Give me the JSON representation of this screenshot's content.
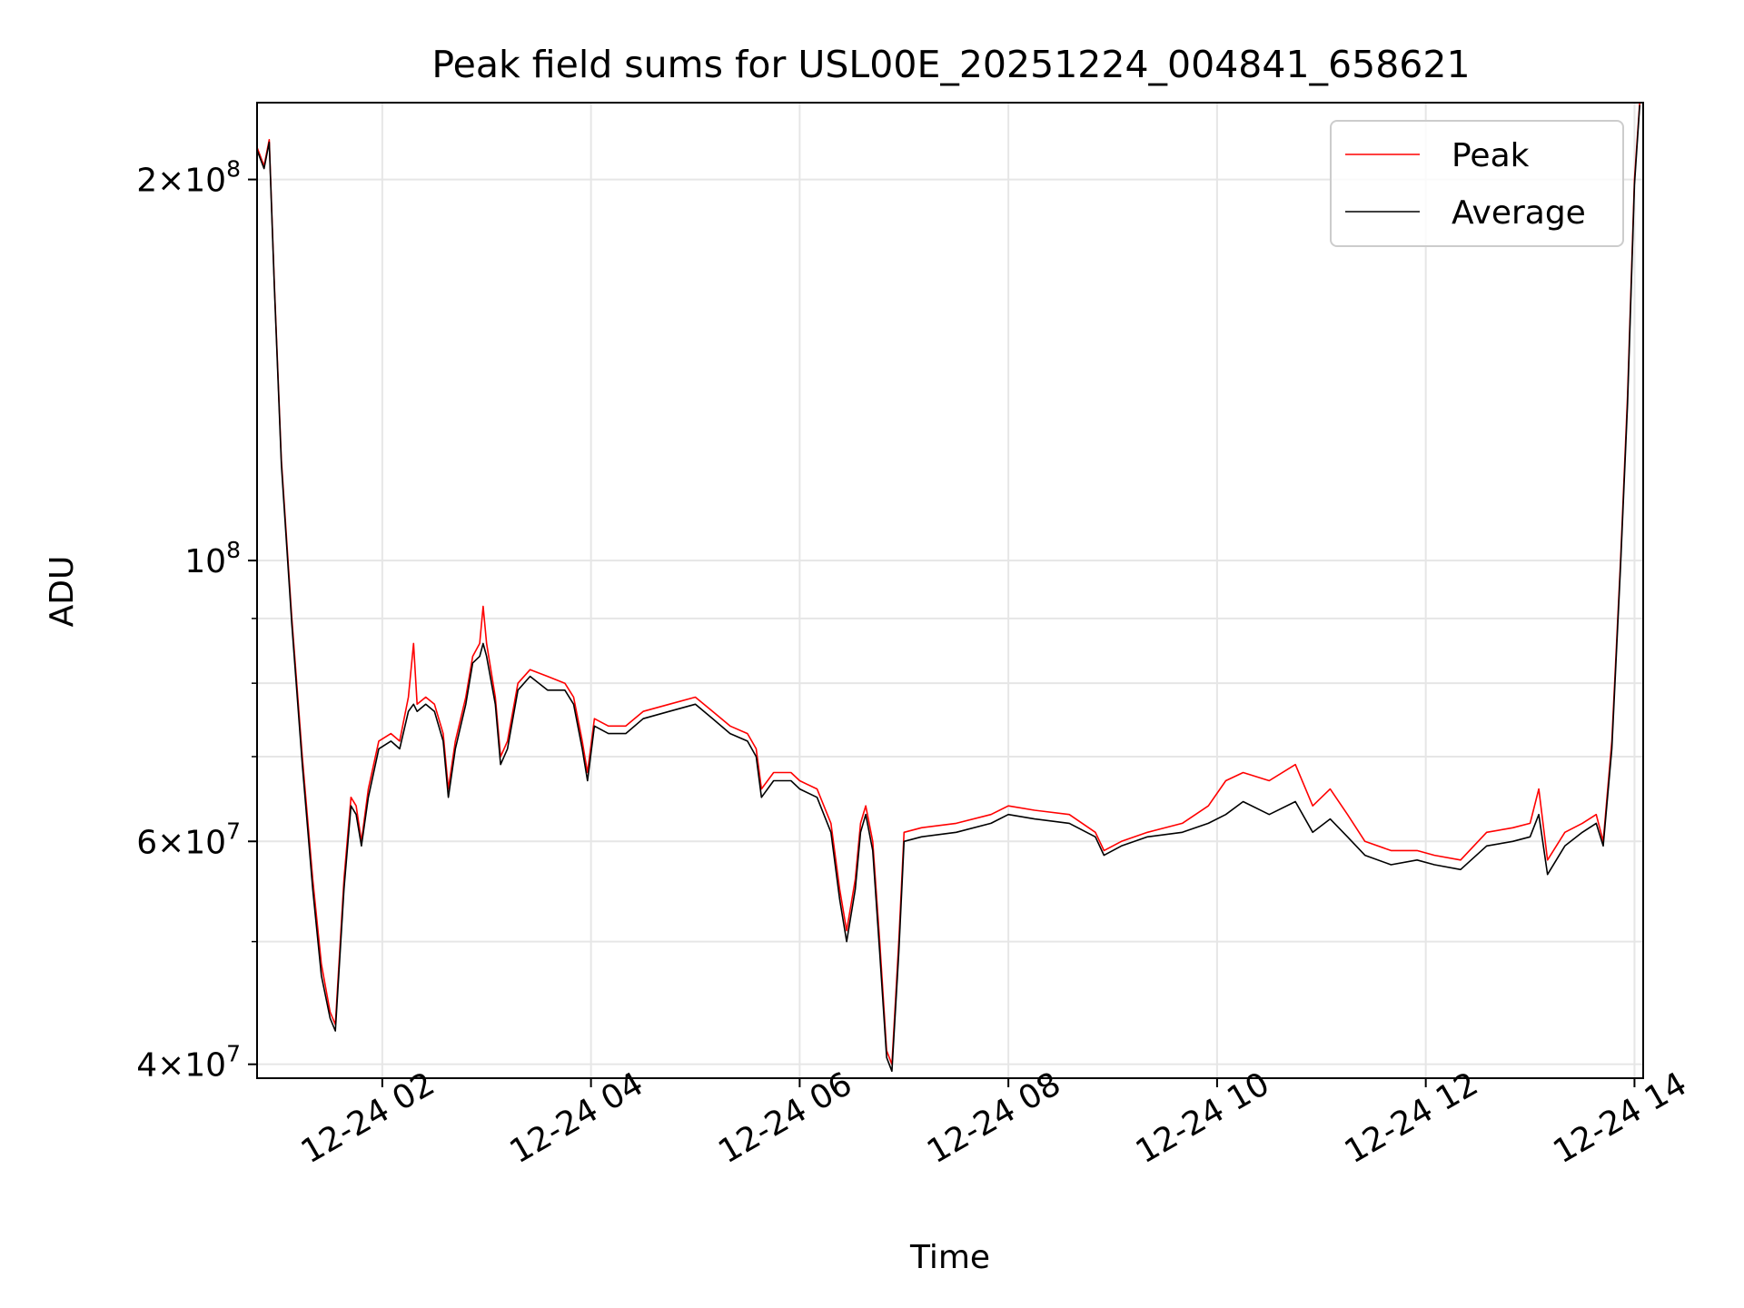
{
  "chart_data": {
    "type": "line",
    "title": "Peak field sums for USL00E_20251224_004841_658621",
    "xlabel": "Time",
    "ylabel": "ADU",
    "yscale": "log",
    "xlim": [
      "2025-12-24T00:48",
      "2025-12-24T14:05"
    ],
    "ylim": [
      39000000,
      230000000
    ],
    "x_ticks": [
      {
        "value": "2025-12-24T02:00",
        "label": "12-24 02"
      },
      {
        "value": "2025-12-24T04:00",
        "label": "12-24 04"
      },
      {
        "value": "2025-12-24T06:00",
        "label": "12-24 06"
      },
      {
        "value": "2025-12-24T08:00",
        "label": "12-24 08"
      },
      {
        "value": "2025-12-24T10:00",
        "label": "12-24 10"
      },
      {
        "value": "2025-12-24T12:00",
        "label": "12-24 12"
      },
      {
        "value": "2025-12-24T14:00",
        "label": "12-24 14"
      }
    ],
    "y_ticks": [
      {
        "value": 40000000,
        "mantissa": "4",
        "exponent": "7"
      },
      {
        "value": 60000000,
        "mantissa": "6",
        "exponent": "7"
      },
      {
        "value": 100000000,
        "mantissa": "",
        "exponent": "8"
      },
      {
        "value": 200000000,
        "mantissa": "2",
        "exponent": "8"
      }
    ],
    "y_minor_ticks": [
      50000000,
      70000000,
      80000000,
      90000000
    ],
    "grid": true,
    "legend": {
      "placement": "top-right"
    },
    "series": [
      {
        "name": "Peak",
        "color": "#ff0000",
        "points": [
          [
            "2025-12-24T00:48",
            212000000
          ],
          [
            "2025-12-24T00:52",
            205000000
          ],
          [
            "2025-12-24T00:55",
            215000000
          ],
          [
            "2025-12-24T00:58",
            165000000
          ],
          [
            "2025-12-24T01:02",
            120000000
          ],
          [
            "2025-12-24T01:08",
            90000000
          ],
          [
            "2025-12-24T01:14",
            70000000
          ],
          [
            "2025-12-24T01:20",
            56000000
          ],
          [
            "2025-12-24T01:25",
            48000000
          ],
          [
            "2025-12-24T01:30",
            44000000
          ],
          [
            "2025-12-24T01:33",
            43000000
          ],
          [
            "2025-12-24T01:38",
            56000000
          ],
          [
            "2025-12-24T01:42",
            65000000
          ],
          [
            "2025-12-24T01:45",
            64000000
          ],
          [
            "2025-12-24T01:48",
            60000000
          ],
          [
            "2025-12-24T01:52",
            66000000
          ],
          [
            "2025-12-24T01:58",
            72000000
          ],
          [
            "2025-12-24T02:05",
            73000000
          ],
          [
            "2025-12-24T02:10",
            72000000
          ],
          [
            "2025-12-24T02:15",
            78000000
          ],
          [
            "2025-12-24T02:18",
            86000000
          ],
          [
            "2025-12-24T02:20",
            77000000
          ],
          [
            "2025-12-24T02:25",
            78000000
          ],
          [
            "2025-12-24T02:30",
            77000000
          ],
          [
            "2025-12-24T02:35",
            73000000
          ],
          [
            "2025-12-24T02:38",
            66000000
          ],
          [
            "2025-12-24T02:42",
            72000000
          ],
          [
            "2025-12-24T02:48",
            78000000
          ],
          [
            "2025-12-24T02:52",
            84000000
          ],
          [
            "2025-12-24T02:56",
            86000000
          ],
          [
            "2025-12-24T02:58",
            92000000
          ],
          [
            "2025-12-24T03:00",
            86000000
          ],
          [
            "2025-12-24T03:05",
            78000000
          ],
          [
            "2025-12-24T03:08",
            70000000
          ],
          [
            "2025-12-24T03:12",
            72000000
          ],
          [
            "2025-12-24T03:18",
            80000000
          ],
          [
            "2025-12-24T03:25",
            82000000
          ],
          [
            "2025-12-24T03:35",
            81000000
          ],
          [
            "2025-12-24T03:45",
            80000000
          ],
          [
            "2025-12-24T03:50",
            78000000
          ],
          [
            "2025-12-24T03:55",
            72000000
          ],
          [
            "2025-12-24T03:58",
            68000000
          ],
          [
            "2025-12-24T04:02",
            75000000
          ],
          [
            "2025-12-24T04:10",
            74000000
          ],
          [
            "2025-12-24T04:20",
            74000000
          ],
          [
            "2025-12-24T04:30",
            76000000
          ],
          [
            "2025-12-24T04:45",
            77000000
          ],
          [
            "2025-12-24T05:00",
            78000000
          ],
          [
            "2025-12-24T05:10",
            76000000
          ],
          [
            "2025-12-24T05:20",
            74000000
          ],
          [
            "2025-12-24T05:30",
            73000000
          ],
          [
            "2025-12-24T05:35",
            71000000
          ],
          [
            "2025-12-24T05:38",
            66000000
          ],
          [
            "2025-12-24T05:45",
            68000000
          ],
          [
            "2025-12-24T05:55",
            68000000
          ],
          [
            "2025-12-24T06:00",
            67000000
          ],
          [
            "2025-12-24T06:10",
            66000000
          ],
          [
            "2025-12-24T06:18",
            62000000
          ],
          [
            "2025-12-24T06:23",
            55000000
          ],
          [
            "2025-12-24T06:27",
            51000000
          ],
          [
            "2025-12-24T06:32",
            56000000
          ],
          [
            "2025-12-24T06:35",
            62000000
          ],
          [
            "2025-12-24T06:38",
            64000000
          ],
          [
            "2025-12-24T06:42",
            60000000
          ],
          [
            "2025-12-24T06:46",
            50000000
          ],
          [
            "2025-12-24T06:50",
            41000000
          ],
          [
            "2025-12-24T06:53",
            40000000
          ],
          [
            "2025-12-24T06:57",
            50000000
          ],
          [
            "2025-12-24T07:00",
            61000000
          ],
          [
            "2025-12-24T07:10",
            61500000
          ],
          [
            "2025-12-24T07:30",
            62000000
          ],
          [
            "2025-12-24T07:50",
            63000000
          ],
          [
            "2025-12-24T08:00",
            64000000
          ],
          [
            "2025-12-24T08:15",
            63500000
          ],
          [
            "2025-12-24T08:35",
            63000000
          ],
          [
            "2025-12-24T08:50",
            61000000
          ],
          [
            "2025-12-24T08:55",
            59000000
          ],
          [
            "2025-12-24T09:05",
            60000000
          ],
          [
            "2025-12-24T09:20",
            61000000
          ],
          [
            "2025-12-24T09:40",
            62000000
          ],
          [
            "2025-12-24T09:55",
            64000000
          ],
          [
            "2025-12-24T10:05",
            67000000
          ],
          [
            "2025-12-24T10:15",
            68000000
          ],
          [
            "2025-12-24T10:30",
            67000000
          ],
          [
            "2025-12-24T10:45",
            69000000
          ],
          [
            "2025-12-24T10:55",
            64000000
          ],
          [
            "2025-12-24T11:05",
            66000000
          ],
          [
            "2025-12-24T11:15",
            63000000
          ],
          [
            "2025-12-24T11:25",
            60000000
          ],
          [
            "2025-12-24T11:40",
            59000000
          ],
          [
            "2025-12-24T11:55",
            59000000
          ],
          [
            "2025-12-24T12:05",
            58500000
          ],
          [
            "2025-12-24T12:20",
            58000000
          ],
          [
            "2025-12-24T12:35",
            61000000
          ],
          [
            "2025-12-24T12:50",
            61500000
          ],
          [
            "2025-12-24T13:00",
            62000000
          ],
          [
            "2025-12-24T13:05",
            66000000
          ],
          [
            "2025-12-24T13:10",
            58000000
          ],
          [
            "2025-12-24T13:20",
            61000000
          ],
          [
            "2025-12-24T13:30",
            62000000
          ],
          [
            "2025-12-24T13:38",
            63000000
          ],
          [
            "2025-12-24T13:42",
            60000000
          ],
          [
            "2025-12-24T13:47",
            72000000
          ],
          [
            "2025-12-24T13:52",
            100000000
          ],
          [
            "2025-12-24T13:56",
            135000000
          ],
          [
            "2025-12-24T14:00",
            200000000
          ],
          [
            "2025-12-24T14:03",
            230000000
          ]
        ]
      },
      {
        "name": "Average",
        "color": "#000000",
        "points": [
          [
            "2025-12-24T00:48",
            211000000
          ],
          [
            "2025-12-24T00:52",
            204000000
          ],
          [
            "2025-12-24T00:55",
            214000000
          ],
          [
            "2025-12-24T00:58",
            164000000
          ],
          [
            "2025-12-24T01:02",
            119000000
          ],
          [
            "2025-12-24T01:08",
            89000000
          ],
          [
            "2025-12-24T01:14",
            69000000
          ],
          [
            "2025-12-24T01:20",
            55000000
          ],
          [
            "2025-12-24T01:25",
            47000000
          ],
          [
            "2025-12-24T01:30",
            43500000
          ],
          [
            "2025-12-24T01:33",
            42500000
          ],
          [
            "2025-12-24T01:38",
            55000000
          ],
          [
            "2025-12-24T01:42",
            64000000
          ],
          [
            "2025-12-24T01:45",
            63000000
          ],
          [
            "2025-12-24T01:48",
            59500000
          ],
          [
            "2025-12-24T01:52",
            65000000
          ],
          [
            "2025-12-24T01:58",
            71000000
          ],
          [
            "2025-12-24T02:05",
            72000000
          ],
          [
            "2025-12-24T02:10",
            71000000
          ],
          [
            "2025-12-24T02:15",
            76000000
          ],
          [
            "2025-12-24T02:18",
            77000000
          ],
          [
            "2025-12-24T02:20",
            76000000
          ],
          [
            "2025-12-24T02:25",
            77000000
          ],
          [
            "2025-12-24T02:30",
            76000000
          ],
          [
            "2025-12-24T02:35",
            72000000
          ],
          [
            "2025-12-24T02:38",
            65000000
          ],
          [
            "2025-12-24T02:42",
            71000000
          ],
          [
            "2025-12-24T02:48",
            77000000
          ],
          [
            "2025-12-24T02:52",
            83000000
          ],
          [
            "2025-12-24T02:56",
            84000000
          ],
          [
            "2025-12-24T02:58",
            86000000
          ],
          [
            "2025-12-24T03:00",
            84000000
          ],
          [
            "2025-12-24T03:05",
            77000000
          ],
          [
            "2025-12-24T03:08",
            69000000
          ],
          [
            "2025-12-24T03:12",
            71000000
          ],
          [
            "2025-12-24T03:18",
            79000000
          ],
          [
            "2025-12-24T03:25",
            81000000
          ],
          [
            "2025-12-24T03:35",
            79000000
          ],
          [
            "2025-12-24T03:45",
            79000000
          ],
          [
            "2025-12-24T03:50",
            77000000
          ],
          [
            "2025-12-24T03:55",
            71000000
          ],
          [
            "2025-12-24T03:58",
            67000000
          ],
          [
            "2025-12-24T04:02",
            74000000
          ],
          [
            "2025-12-24T04:10",
            73000000
          ],
          [
            "2025-12-24T04:20",
            73000000
          ],
          [
            "2025-12-24T04:30",
            75000000
          ],
          [
            "2025-12-24T04:45",
            76000000
          ],
          [
            "2025-12-24T05:00",
            77000000
          ],
          [
            "2025-12-24T05:10",
            75000000
          ],
          [
            "2025-12-24T05:20",
            73000000
          ],
          [
            "2025-12-24T05:30",
            72000000
          ],
          [
            "2025-12-24T05:35",
            70000000
          ],
          [
            "2025-12-24T05:38",
            65000000
          ],
          [
            "2025-12-24T05:45",
            67000000
          ],
          [
            "2025-12-24T05:55",
            67000000
          ],
          [
            "2025-12-24T06:00",
            66000000
          ],
          [
            "2025-12-24T06:10",
            65000000
          ],
          [
            "2025-12-24T06:18",
            61000000
          ],
          [
            "2025-12-24T06:23",
            54000000
          ],
          [
            "2025-12-24T06:27",
            50000000
          ],
          [
            "2025-12-24T06:32",
            55000000
          ],
          [
            "2025-12-24T06:35",
            61000000
          ],
          [
            "2025-12-24T06:38",
            63000000
          ],
          [
            "2025-12-24T06:42",
            59000000
          ],
          [
            "2025-12-24T06:46",
            49000000
          ],
          [
            "2025-12-24T06:50",
            40500000
          ],
          [
            "2025-12-24T06:53",
            39500000
          ],
          [
            "2025-12-24T06:57",
            49000000
          ],
          [
            "2025-12-24T07:00",
            60000000
          ],
          [
            "2025-12-24T07:10",
            60500000
          ],
          [
            "2025-12-24T07:30",
            61000000
          ],
          [
            "2025-12-24T07:50",
            62000000
          ],
          [
            "2025-12-24T08:00",
            63000000
          ],
          [
            "2025-12-24T08:15",
            62500000
          ],
          [
            "2025-12-24T08:35",
            62000000
          ],
          [
            "2025-12-24T08:50",
            60500000
          ],
          [
            "2025-12-24T08:55",
            58500000
          ],
          [
            "2025-12-24T09:05",
            59500000
          ],
          [
            "2025-12-24T09:20",
            60500000
          ],
          [
            "2025-12-24T09:40",
            61000000
          ],
          [
            "2025-12-24T09:55",
            62000000
          ],
          [
            "2025-12-24T10:05",
            63000000
          ],
          [
            "2025-12-24T10:15",
            64500000
          ],
          [
            "2025-12-24T10:30",
            63000000
          ],
          [
            "2025-12-24T10:45",
            64500000
          ],
          [
            "2025-12-24T10:55",
            61000000
          ],
          [
            "2025-12-24T11:05",
            62500000
          ],
          [
            "2025-12-24T11:15",
            60500000
          ],
          [
            "2025-12-24T11:25",
            58500000
          ],
          [
            "2025-12-24T11:40",
            57500000
          ],
          [
            "2025-12-24T11:55",
            58000000
          ],
          [
            "2025-12-24T12:05",
            57500000
          ],
          [
            "2025-12-24T12:20",
            57000000
          ],
          [
            "2025-12-24T12:35",
            59500000
          ],
          [
            "2025-12-24T12:50",
            60000000
          ],
          [
            "2025-12-24T13:00",
            60500000
          ],
          [
            "2025-12-24T13:05",
            63000000
          ],
          [
            "2025-12-24T13:10",
            56500000
          ],
          [
            "2025-12-24T13:20",
            59500000
          ],
          [
            "2025-12-24T13:30",
            61000000
          ],
          [
            "2025-12-24T13:38",
            62000000
          ],
          [
            "2025-12-24T13:42",
            59500000
          ],
          [
            "2025-12-24T13:47",
            71000000
          ],
          [
            "2025-12-24T13:52",
            99000000
          ],
          [
            "2025-12-24T13:56",
            133000000
          ],
          [
            "2025-12-24T14:00",
            198000000
          ],
          [
            "2025-12-24T14:03",
            229000000
          ]
        ]
      }
    ]
  }
}
